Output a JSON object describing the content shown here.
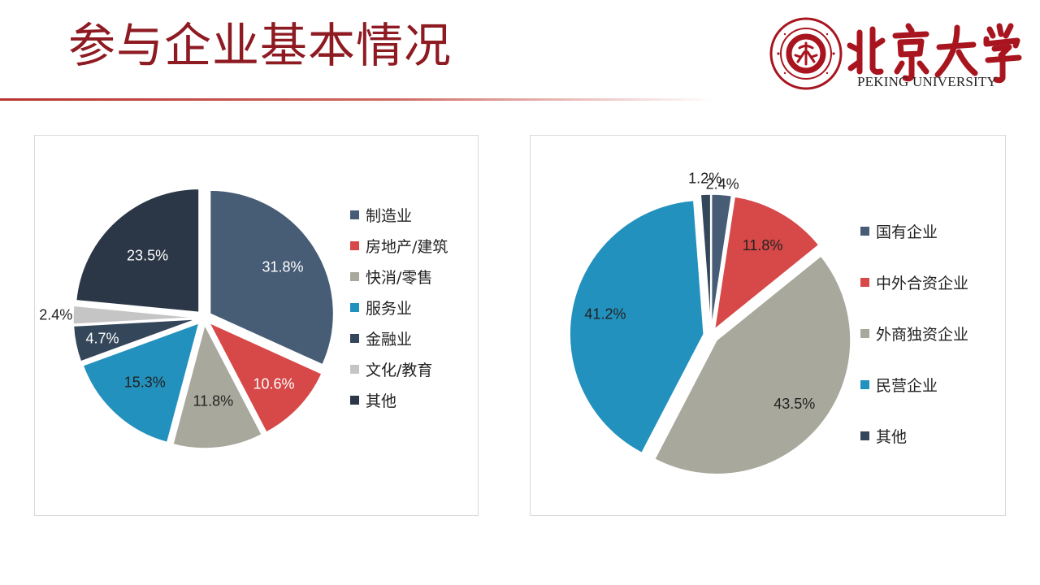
{
  "slide": {
    "title": "参与企业基本情况"
  },
  "logo": {
    "english_name": "PEKING UNIVERSITY",
    "chinese_name": "北京大学",
    "seal_text": "PEKING UNIVERSITY 1898"
  },
  "colors": {
    "title": "#8e1a22",
    "logo": "#a8151f"
  },
  "chart_data": [
    {
      "type": "pie",
      "title": "",
      "categories": [
        "制造业",
        "房地产/建筑",
        "快消/零售",
        "服务业",
        "金融业",
        "文化/教育",
        "其他"
      ],
      "values": [
        31.8,
        10.6,
        11.8,
        15.3,
        4.7,
        2.4,
        23.5
      ],
      "labels": [
        "31.8%",
        "10.6%",
        "11.8%",
        "15.3%",
        "4.7%",
        "2.4%",
        "23.5%"
      ],
      "colors": [
        "#475c75",
        "#d74848",
        "#a8a99c",
        "#2291bd",
        "#34465a",
        "#c5c5c5",
        "#2b3747"
      ],
      "label_colors": [
        "#ffffff",
        "#ffffff",
        "#222222",
        "#222222",
        "#ffffff",
        "#222222",
        "#ffffff"
      ],
      "legend_position": "right",
      "start": "12 o'clock, clockwise",
      "exploded": true
    },
    {
      "type": "pie",
      "title": "",
      "categories": [
        "国有企业",
        "中外合资企业",
        "外商独资企业",
        "民营企业",
        "其他"
      ],
      "values": [
        2.4,
        11.8,
        43.5,
        41.2,
        1.2
      ],
      "labels": [
        "2.4%",
        "11.8%",
        "43.5%",
        "41.2%",
        "1.2%"
      ],
      "colors": [
        "#475c75",
        "#d74848",
        "#a8a99c",
        "#2291bd",
        "#34465a"
      ],
      "label_colors": [
        "#222222",
        "#222222",
        "#222222",
        "#222222",
        "#222222"
      ],
      "legend_position": "right",
      "start": "12 o'clock, clockwise",
      "exploded": true
    }
  ]
}
